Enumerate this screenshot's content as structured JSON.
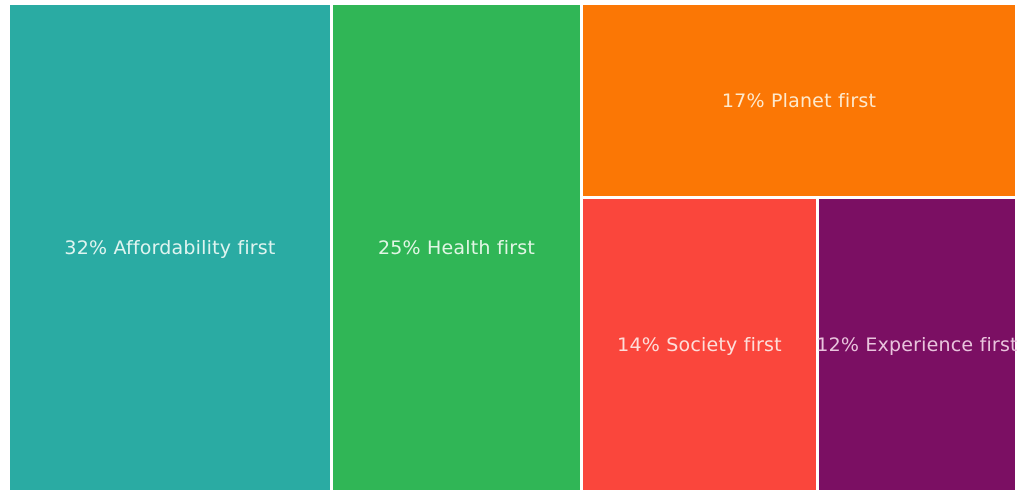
{
  "chart_data": {
    "type": "treemap",
    "title": "",
    "value_unit": "%",
    "background": "#FFFFFF",
    "legend_position": "none",
    "items": [
      {
        "name": "Affordability first",
        "value": 32,
        "label": "32% Affordability first",
        "color": "#2AABA3",
        "label_color": "#DFF4F0"
      },
      {
        "name": "Health first",
        "value": 25,
        "label": "25% Health first",
        "color": "#30B656",
        "label_color": "#E2F6E5"
      },
      {
        "name": "Planet first",
        "value": 17,
        "label": "17% Planet first",
        "color": "#FB7705",
        "label_color": "#FDE9CD"
      },
      {
        "name": "Society first",
        "value": 14,
        "label": "14% Society first",
        "color": "#FA463C",
        "label_color": "#FDDEDA"
      },
      {
        "name": "Experience first",
        "value": 12,
        "label": "12% Experience first",
        "color": "#7B0F63",
        "label_color": "#E9C4DD"
      }
    ]
  }
}
